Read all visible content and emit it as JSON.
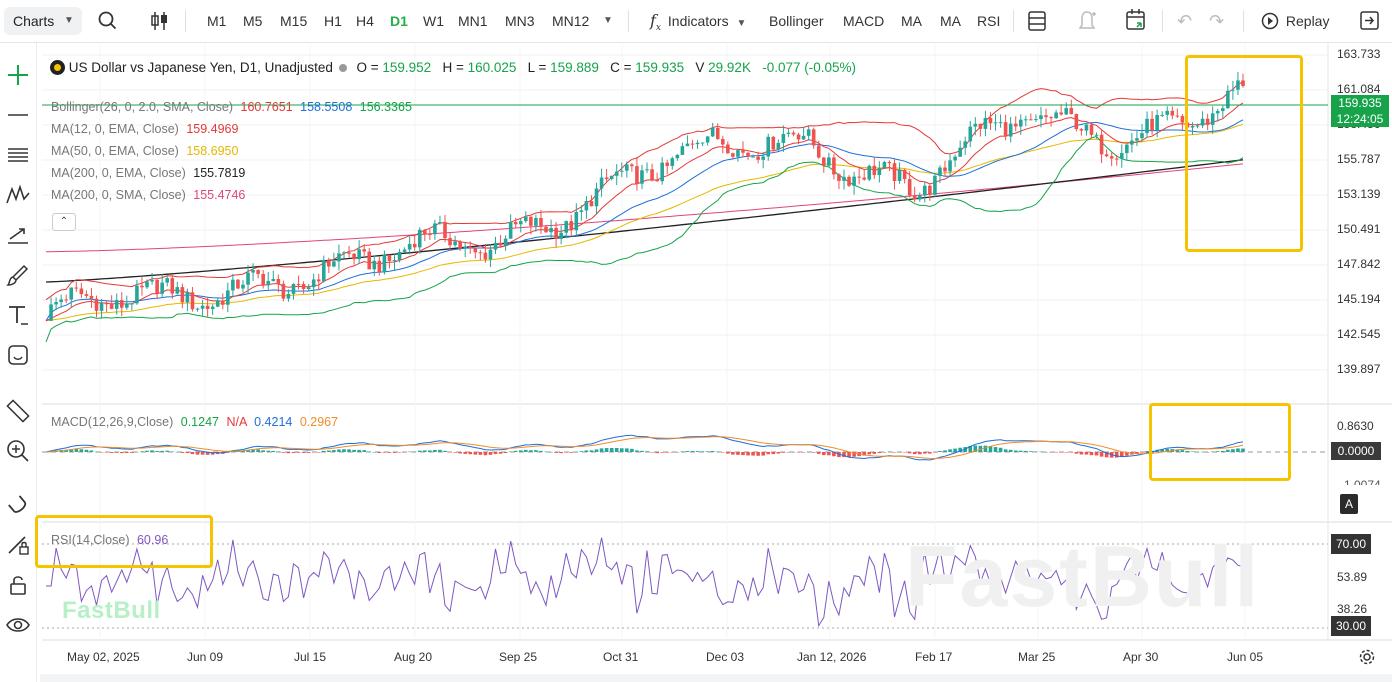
{
  "toolbar": {
    "charts_label": "Charts",
    "timeframes": [
      "M1",
      "M5",
      "M15",
      "H1",
      "H4",
      "D1",
      "W1",
      "MN1",
      "MN3",
      "MN12"
    ],
    "active_timeframe": "D1",
    "indicators_label": "Indicators",
    "quick_indicators": [
      "Bollinger",
      "MACD",
      "MA",
      "MA",
      "RSI"
    ],
    "replay_label": "Replay"
  },
  "legend": {
    "symbol": "US Dollar vs Japanese Yen, D1, Unadjusted",
    "open_label": "O",
    "open": "159.952",
    "high_label": "H",
    "high": "160.025",
    "low_label": "L",
    "low": "159.889",
    "close_label": "C",
    "close": "159.935",
    "volume_label": "V",
    "volume": "29.92K",
    "change": "-0.077 (-0.05%)"
  },
  "indicators": [
    {
      "label": "Bollinger(26, 0, 2.0, SMA, Close)",
      "values": [
        "160.7651",
        "158.5508",
        "156.3365"
      ],
      "colors": [
        "#e53935",
        "#1e6fd9",
        "#16a34a"
      ]
    },
    {
      "label": "MA(12, 0, EMA, Close)",
      "values": [
        "159.4969"
      ],
      "colors": [
        "#e53935"
      ]
    },
    {
      "label": "MA(50, 0, EMA, Close)",
      "values": [
        "158.6950"
      ],
      "colors": [
        "#e6b800"
      ]
    },
    {
      "label": "MA(200, 0, EMA, Close)",
      "values": [
        "155.7819"
      ],
      "colors": [
        "#222222"
      ]
    },
    {
      "label": "MA(200, 0, SMA, Close)",
      "values": [
        "155.4746"
      ],
      "colors": [
        "#e0457b"
      ]
    }
  ],
  "macd": {
    "label": "MACD(12,26,9,Close)",
    "values": [
      "0.1247",
      "N/A",
      "0.4214",
      "0.2967"
    ],
    "colors": [
      "#16a34a",
      "#e53935",
      "#1e6fd9",
      "#f28c28"
    ],
    "axis": [
      "0.8630"
    ],
    "zero_tag": "0.0000",
    "neg_label_partial": "-1.0074"
  },
  "rsi": {
    "label": "RSI(14,Close)",
    "value": "60.96",
    "axis": [
      "53.89",
      "38.26"
    ],
    "tags": [
      "70.00",
      "30.00"
    ]
  },
  "price_axis": [
    "163.733",
    "161.084",
    "158.436",
    "155.787",
    "153.139",
    "150.491",
    "147.842",
    "145.194",
    "142.545",
    "139.897"
  ],
  "current_price": "159.935",
  "countdown": "12:24:05",
  "date_axis": [
    "May 02, 2025",
    "Jun 09",
    "Jul 15",
    "Aug 20",
    "Sep 25",
    "Oct 31",
    "Dec 03",
    "Jan 12, 2026",
    "Feb 17",
    "Mar 25",
    "Apr 30",
    "Jun 05"
  ],
  "pane_tag": "A",
  "watermark": "FastBull",
  "colors": {
    "up": "#26a69a",
    "down": "#ef5350",
    "accent": "#16a34a",
    "highlight": "#f5c300",
    "bb_upper": "#e53935",
    "bb_mid": "#1e6fd9",
    "bb_lower": "#16a34a",
    "ema12": "#e53935",
    "ema50": "#e6b800",
    "ema200": "#222222",
    "sma200": "#e0457b"
  },
  "chart_data": {
    "type": "line",
    "series": [
      {
        "name": "US Dollar vs Japanese Yen, D1, Unadjusted",
        "x": [
          "May 02, 2025",
          "Jun 09",
          "Jul 15",
          "Aug 20",
          "Sep 25",
          "Oct 31",
          "Dec 03",
          "Jan 12, 2026",
          "Feb 17",
          "Mar 25",
          "Apr 30",
          "Jun 05"
        ],
        "values": [
          144.0,
          144.5,
          147.5,
          147.5,
          149.5,
          153.5,
          155.5,
          158.0,
          153.5,
          158.5,
          158.5,
          159.9
        ]
      }
    ],
    "ylim": [
      139.897,
      163.733
    ]
  }
}
